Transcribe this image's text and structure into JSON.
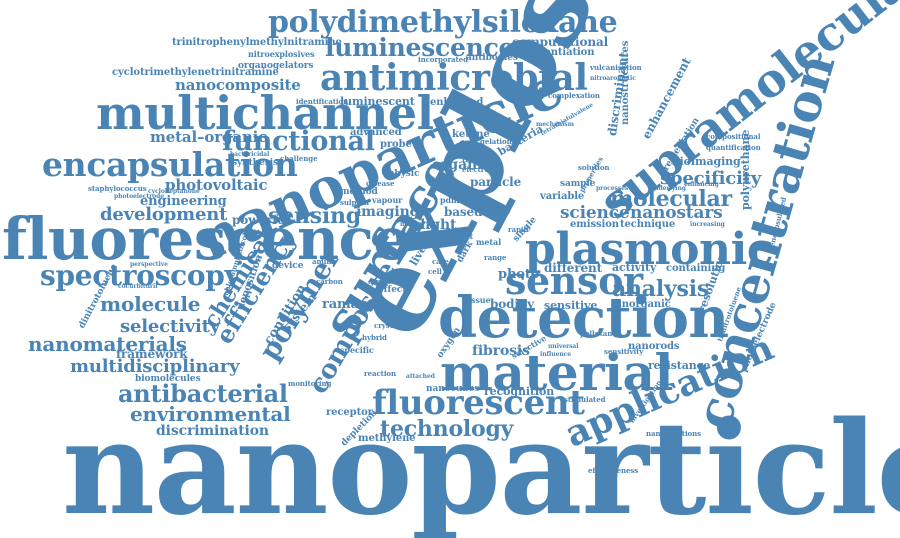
{
  "color": "#4a84b5",
  "words": [
    {
      "id": "nanoparticles",
      "text": "nanoparticles"
    },
    {
      "id": "explosive",
      "text": "explosive"
    },
    {
      "id": "fluorescence",
      "text": "fluorescence"
    },
    {
      "id": "nanoparticle",
      "text": "nanoparticle"
    },
    {
      "id": "surface",
      "text": "surface"
    },
    {
      "id": "detection",
      "text": "detection"
    },
    {
      "id": "supramolecular",
      "text": "supramolecular"
    },
    {
      "id": "concentration",
      "text": "concentration"
    },
    {
      "id": "plasmonic",
      "text": "plasmonic"
    },
    {
      "id": "material",
      "text": "material"
    },
    {
      "id": "multichannel",
      "text": "multichannel"
    },
    {
      "id": "antimicrobial",
      "text": "antimicrobial"
    },
    {
      "id": "encapsulation",
      "text": "encapsulation"
    },
    {
      "id": "polydimethylsiloxane",
      "text": "polydimethylsiloxane"
    },
    {
      "id": "luminescence",
      "text": "luminescence"
    },
    {
      "id": "spectroscopy",
      "text": "spectroscopy"
    },
    {
      "id": "sensor",
      "text": "sensor"
    },
    {
      "id": "application",
      "text": "application"
    },
    {
      "id": "fluorescent",
      "text": "fluorescent"
    },
    {
      "id": "polymer",
      "text": "polymer"
    },
    {
      "id": "composite",
      "text": "composite"
    },
    {
      "id": "efficiency",
      "text": "efficiency"
    },
    {
      "id": "chemical",
      "text": "chemical"
    },
    {
      "id": "functional",
      "text": "functional"
    },
    {
      "id": "sensing",
      "text": "sensing"
    },
    {
      "id": "analysis",
      "text": "analysis"
    },
    {
      "id": "molecular",
      "text": "molecular"
    },
    {
      "id": "specificity",
      "text": "specificity"
    },
    {
      "id": "nanostars",
      "text": "nanostars"
    },
    {
      "id": "science",
      "text": "science"
    },
    {
      "id": "technology",
      "text": "technology"
    },
    {
      "id": "antibacterial",
      "text": "antibacterial"
    },
    {
      "id": "environmental",
      "text": "environmental"
    },
    {
      "id": "discrimination",
      "text": "discrimination"
    },
    {
      "id": "molecule",
      "text": "molecule"
    },
    {
      "id": "selectivity",
      "text": "selectivity"
    },
    {
      "id": "nanomaterials",
      "text": "nanomaterials"
    },
    {
      "id": "multidisciplinary",
      "text": "multidisciplinary"
    },
    {
      "id": "development",
      "text": "development"
    },
    {
      "id": "photovoltaic",
      "text": "photovoltaic"
    },
    {
      "id": "engineering",
      "text": "engineering"
    },
    {
      "id": "nanocomposite",
      "text": "nanocomposite"
    },
    {
      "id": "metal-organic",
      "text": "metal–organic"
    },
    {
      "id": "framework",
      "text": "framework"
    },
    {
      "id": "biomolecules",
      "text": "biomolecules"
    },
    {
      "id": "trinitrophenylmethylnitramine",
      "text": "trinitrophenylmethylnitramine"
    },
    {
      "id": "cyclotrimethylenetrinitramine",
      "text": "cyclotrimethylenetrinitramine"
    },
    {
      "id": "nitroexplosives",
      "text": "nitroexplosives"
    },
    {
      "id": "organogelators",
      "text": "organogelators"
    },
    {
      "id": "computational",
      "text": "computational"
    },
    {
      "id": "differentiation",
      "text": "differentiation"
    },
    {
      "id": "antibodies",
      "text": "antibodies"
    },
    {
      "id": "incorporated",
      "text": "incorporated"
    },
    {
      "id": "luminescent",
      "text": "luminescent"
    },
    {
      "id": "identification",
      "text": "identification"
    },
    {
      "id": "enhanced",
      "text": "enhanced"
    },
    {
      "id": "advanced",
      "text": "advanced"
    },
    {
      "id": "synthesis",
      "text": "synthesis"
    },
    {
      "id": "challenge",
      "text": "challenge"
    },
    {
      "id": "bactericidal",
      "text": "bactericidal"
    },
    {
      "id": "nanostructures",
      "text": "nanostructures"
    },
    {
      "id": "enhancement",
      "text": "enhancement"
    },
    {
      "id": "discriminant",
      "text": "discriminant"
    },
    {
      "id": "remediation",
      "text": "remediation"
    },
    {
      "id": "polyurethane",
      "text": "polyurethane"
    },
    {
      "id": "bioimaging",
      "text": "bioimaging"
    },
    {
      "id": "quantification",
      "text": "quantification"
    },
    {
      "id": "compositional",
      "text": "compositional"
    },
    {
      "id": "vulcanisation",
      "text": "vulcanisation"
    },
    {
      "id": "complexation",
      "text": "complexation"
    },
    {
      "id": "staphylococcus",
      "text": "staphylococcus"
    },
    {
      "id": "cyclohexane",
      "text": "cycloheptanone"
    },
    {
      "id": "photoelectrode",
      "text": "photoelectrode"
    },
    {
      "id": "trinitrotoluene",
      "text": "trinitrotoluene"
    },
    {
      "id": "encapsulated",
      "text": "encapsulated"
    },
    {
      "id": "resolution",
      "text": "resolution"
    },
    {
      "id": "containing",
      "text": "containing"
    },
    {
      "id": "activity",
      "text": "activity"
    },
    {
      "id": "inorganic",
      "text": "inorganic"
    },
    {
      "id": "nanorods",
      "text": "nanorods"
    },
    {
      "id": "resistance",
      "text": "resistance"
    },
    {
      "id": "nanojunctions",
      "text": "nanojunctions"
    },
    {
      "id": "investigation",
      "text": "investigation"
    },
    {
      "id": "effectiveness",
      "text": "effectiveness"
    },
    {
      "id": "recognition",
      "text": "recognition"
    },
    {
      "id": "nanocubes",
      "text": "nanocubes"
    },
    {
      "id": "fibrosis",
      "text": "fibrosis"
    },
    {
      "id": "receptor",
      "text": "receptor"
    },
    {
      "id": "methylene",
      "text": "methylene"
    },
    {
      "id": "depletion",
      "text": "depletion"
    },
    {
      "id": "raman",
      "text": "raman"
    },
    {
      "id": "imaging",
      "text": "imaging"
    },
    {
      "id": "light",
      "text": "light"
    },
    {
      "id": "organic",
      "text": "organic"
    },
    {
      "id": "ketone",
      "text": "ketone"
    },
    {
      "id": "particle",
      "text": "particle"
    },
    {
      "id": "different",
      "text": "different"
    },
    {
      "id": "sensitive",
      "text": "sensitive"
    },
    {
      "id": "bodipy",
      "text": "bodipy"
    },
    {
      "id": "emission",
      "text": "emission"
    },
    {
      "id": "technique",
      "text": "technique"
    },
    {
      "id": "variable",
      "text": "variable"
    },
    {
      "id": "sample",
      "text": "sample"
    },
    {
      "id": "dinitrotoluene",
      "text": "dinitrotoluene"
    },
    {
      "id": "chloramphenicol",
      "text": "chloramphenicol"
    },
    {
      "id": "cocurbituril",
      "text": "cocurbituril"
    },
    {
      "id": "perspective",
      "text": "perspective"
    },
    {
      "id": "deposition",
      "text": "deposition"
    },
    {
      "id": "device",
      "text": "device"
    },
    {
      "id": "system",
      "text": "system"
    },
    {
      "id": "condition",
      "text": "condition"
    },
    {
      "id": "powerful",
      "text": "powerful"
    },
    {
      "id": "method",
      "text": "method"
    },
    {
      "id": "physic",
      "text": "physic"
    },
    {
      "id": "disease",
      "text": "disease"
    },
    {
      "id": "bacteria",
      "text": "bacteria"
    },
    {
      "id": "probe",
      "text": "probe"
    },
    {
      "id": "vapour",
      "text": "vapour"
    },
    {
      "id": "based",
      "text": "based"
    },
    {
      "id": "energy",
      "text": "energy"
    },
    {
      "id": "photo",
      "text": "photo"
    },
    {
      "id": "pdms",
      "text": "pdms"
    },
    {
      "id": "solution",
      "text": "solution"
    },
    {
      "id": "properties",
      "text": "properties"
    },
    {
      "id": "processes",
      "text": "processes"
    },
    {
      "id": "transfer",
      "text": "transfer"
    },
    {
      "id": "electron",
      "text": "electron"
    },
    {
      "id": "stimulated",
      "text": "stimulated"
    },
    {
      "id": "sensitivity",
      "text": "sensitivity"
    },
    {
      "id": "selective",
      "text": "selective"
    },
    {
      "id": "oxygen",
      "text": "oxygen"
    },
    {
      "id": "effect",
      "text": "effect"
    },
    {
      "id": "direct",
      "text": "direct"
    },
    {
      "id": "issue",
      "text": "issue"
    },
    {
      "id": "dark",
      "text": "dark"
    },
    {
      "id": "single",
      "text": "single"
    },
    {
      "id": "range",
      "text": "range"
    },
    {
      "id": "point",
      "text": "point"
    },
    {
      "id": "metal",
      "text": "metal"
    },
    {
      "id": "rapid",
      "text": "rapid"
    },
    {
      "id": "crystal",
      "text": "crystal"
    },
    {
      "id": "specific",
      "text": "specific"
    },
    {
      "id": "hybrid",
      "text": "hybrid"
    },
    {
      "id": "amine",
      "text": "amine"
    },
    {
      "id": "carbon",
      "text": "carbon"
    },
    {
      "id": "pollutant",
      "text": "pollutant"
    },
    {
      "id": "influence",
      "text": "influence"
    },
    {
      "id": "universal",
      "text": "universal"
    },
    {
      "id": "enhancing",
      "text": "enhancing"
    },
    {
      "id": "underlying",
      "text": "underlying"
    },
    {
      "id": "increasing",
      "text": "increasing"
    },
    {
      "id": "nitroaromatic",
      "text": "nitroaromatic"
    },
    {
      "id": "monitoring",
      "text": "monitoring"
    },
    {
      "id": "reaction",
      "text": "reaction"
    },
    {
      "id": "attached",
      "text": "attached"
    },
    {
      "id": "sulphur",
      "text": "sulphur"
    },
    {
      "id": "liver",
      "text": "liver"
    },
    {
      "id": "care",
      "text": "care"
    },
    {
      "id": "cell",
      "text": "cell"
    },
    {
      "id": "matter",
      "text": "matter"
    },
    {
      "id": "visible",
      "text": "visible"
    },
    {
      "id": "mechanism",
      "text": "mechanism"
    },
    {
      "id": "sensor-array",
      "text": "array"
    },
    {
      "id": "gelation",
      "text": "gelation"
    },
    {
      "id": "tetrathiafulvalene",
      "text": "tetrathiafulvalene"
    }
  ]
}
